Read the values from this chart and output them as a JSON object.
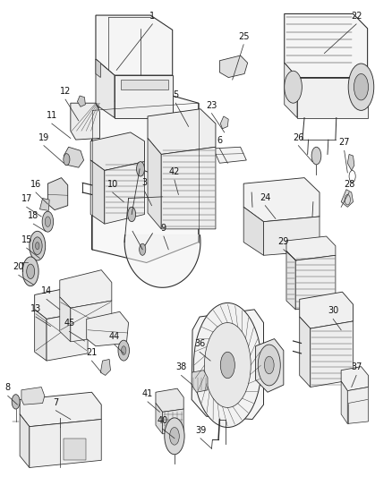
{
  "bg_color": "#ffffff",
  "fig_width": 4.39,
  "fig_height": 5.33,
  "dpi": 100,
  "line_color": "#2a2a2a",
  "text_color": "#111111",
  "label_fontsize": 7,
  "leader_lw": 0.55,
  "part_lw": 0.7,
  "labels": {
    "1": [
      0.39,
      0.948,
      0.3,
      0.885
    ],
    "22": [
      0.9,
      0.948,
      0.82,
      0.908
    ],
    "25": [
      0.618,
      0.92,
      0.59,
      0.872
    ],
    "12": [
      0.172,
      0.845,
      0.205,
      0.816
    ],
    "11": [
      0.138,
      0.812,
      0.185,
      0.792
    ],
    "19": [
      0.118,
      0.782,
      0.168,
      0.758
    ],
    "5": [
      0.448,
      0.84,
      0.48,
      0.808
    ],
    "23": [
      0.538,
      0.826,
      0.57,
      0.8
    ],
    "6": [
      0.558,
      0.778,
      0.578,
      0.758
    ],
    "26": [
      0.755,
      0.782,
      0.79,
      0.76
    ],
    "27": [
      0.87,
      0.775,
      0.878,
      0.745
    ],
    "28": [
      0.882,
      0.718,
      0.862,
      0.698
    ],
    "16": [
      0.098,
      0.718,
      0.128,
      0.702
    ],
    "17": [
      0.075,
      0.698,
      0.112,
      0.685
    ],
    "18": [
      0.092,
      0.675,
      0.122,
      0.665
    ],
    "10": [
      0.29,
      0.718,
      0.318,
      0.705
    ],
    "3": [
      0.37,
      0.72,
      0.388,
      0.7
    ],
    "42": [
      0.445,
      0.735,
      0.455,
      0.715
    ],
    "24": [
      0.672,
      0.7,
      0.698,
      0.682
    ],
    "29": [
      0.718,
      0.64,
      0.75,
      0.625
    ],
    "15": [
      0.075,
      0.642,
      0.108,
      0.628
    ],
    "20": [
      0.055,
      0.605,
      0.092,
      0.592
    ],
    "9": [
      0.418,
      0.658,
      0.43,
      0.64
    ],
    "14": [
      0.125,
      0.572,
      0.158,
      0.558
    ],
    "13": [
      0.098,
      0.548,
      0.135,
      0.535
    ],
    "45": [
      0.182,
      0.528,
      0.22,
      0.515
    ],
    "44": [
      0.295,
      0.51,
      0.318,
      0.498
    ],
    "21": [
      0.238,
      0.488,
      0.262,
      0.472
    ],
    "30": [
      0.842,
      0.545,
      0.862,
      0.53
    ],
    "36": [
      0.508,
      0.5,
      0.535,
      0.488
    ],
    "38": [
      0.462,
      0.468,
      0.49,
      0.455
    ],
    "37": [
      0.9,
      0.468,
      0.888,
      0.452
    ],
    "8": [
      0.028,
      0.44,
      0.052,
      0.428
    ],
    "7": [
      0.148,
      0.42,
      0.185,
      0.408
    ],
    "41": [
      0.378,
      0.432,
      0.408,
      0.418
    ],
    "40": [
      0.415,
      0.395,
      0.445,
      0.382
    ],
    "39": [
      0.51,
      0.382,
      0.538,
      0.368
    ]
  }
}
